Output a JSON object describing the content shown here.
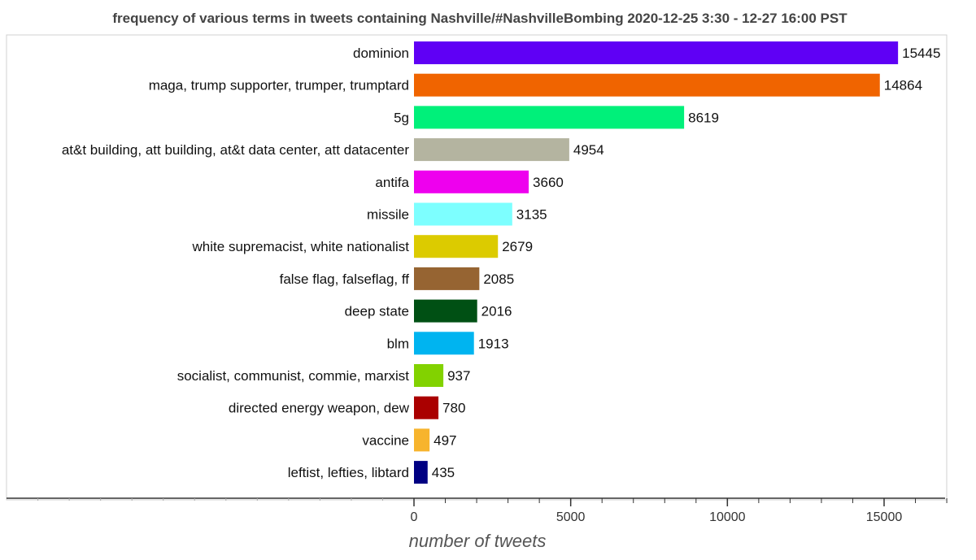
{
  "chart_data": {
    "type": "bar",
    "orientation": "horizontal",
    "title": "frequency of various terms in tweets containing Nashville/#NashvilleBombing 2020-12-25 3:30 - 12-27 16:00 PST",
    "xlabel": "number of tweets",
    "ylabel": "",
    "xlim": [
      0,
      17000
    ],
    "xticks": [
      0,
      5000,
      10000,
      15000
    ],
    "xtick_labels": [
      "0",
      "5000",
      "10000",
      "15000"
    ],
    "grid": false,
    "legend": "none",
    "categories": [
      "dominion",
      "maga, trump supporter, trumper, trumptard",
      "5g",
      "at&t building, att building, at&t data center, att datacenter",
      "antifa",
      "missile",
      "white supremacist, white nationalist",
      "false flag, falseflag,  ff",
      "deep state",
      "blm",
      "socialist, communist, commie, marxist",
      "directed energy weapon,  dew",
      "vaccine",
      "leftist, lefties, libtard"
    ],
    "values": [
      15445,
      14864,
      8619,
      4954,
      3660,
      3135,
      2679,
      2085,
      2016,
      1913,
      937,
      780,
      497,
      435
    ],
    "value_labels": [
      "15445",
      "14864",
      "8619",
      "4954",
      "3660",
      "3135",
      "2679",
      "2085",
      "2016",
      "1913",
      "937",
      "780",
      "497",
      "435"
    ],
    "colors": [
      "#5f00f5",
      "#f06400",
      "#00f07a",
      "#b4b4a0",
      "#ee00ee",
      "#7dffff",
      "#dccb00",
      "#966432",
      "#005014",
      "#00b4f0",
      "#82d200",
      "#aa0000",
      "#f7b42d",
      "#000082"
    ]
  }
}
